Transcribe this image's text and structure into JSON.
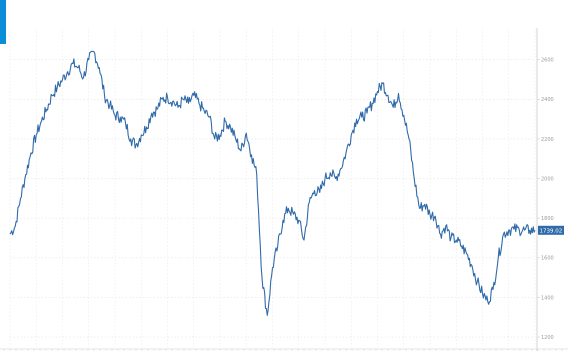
{
  "colors": {
    "accent": "#0b8ed8",
    "line": "#2f6aa9",
    "grid": "#e4e4e4",
    "axis": "#cccccc",
    "background": "#ffffff"
  },
  "chart_data": {
    "type": "line",
    "title": "",
    "xlabel": "",
    "ylabel": "",
    "ylim": [
      1150,
      2760
    ],
    "y_ticks": [
      1200,
      1400,
      1600,
      1800,
      2000,
      2200,
      2400,
      2600
    ],
    "y_tick_labels": [
      "1200",
      "1400",
      "1600",
      "1800",
      "2000",
      "2200",
      "2400",
      "2600"
    ],
    "grid": true,
    "y_axis_position": "right",
    "x_index_range": [
      0,
      100
    ],
    "last_value": 1739,
    "last_value_label": "1739.02",
    "series": [
      {
        "x": [
          0,
          1,
          2,
          3,
          4,
          5,
          6,
          7,
          8,
          9,
          10,
          11,
          12,
          13,
          14,
          15,
          16,
          17,
          18,
          19,
          20,
          21,
          22,
          23,
          24,
          25,
          26,
          27,
          28,
          29,
          30,
          31,
          32,
          33,
          34,
          35,
          36,
          37,
          38,
          39,
          40,
          41,
          42,
          43,
          44,
          45,
          46,
          47,
          48,
          49,
          50,
          51,
          52,
          53,
          54,
          55,
          56,
          57,
          58,
          59,
          60,
          61,
          62,
          63,
          64,
          65,
          66,
          67,
          68,
          69,
          70,
          71,
          72,
          73,
          74,
          75,
          76,
          77,
          78,
          79,
          80,
          81,
          82,
          83,
          84,
          85,
          86,
          87,
          88,
          89,
          90,
          91,
          92,
          93,
          94,
          95,
          96,
          97,
          98,
          99,
          100
        ],
        "values": [
          1720,
          1760,
          1900,
          2020,
          2130,
          2220,
          2290,
          2350,
          2420,
          2460,
          2500,
          2540,
          2580,
          2560,
          2510,
          2600,
          2640,
          2560,
          2420,
          2370,
          2320,
          2310,
          2280,
          2200,
          2170,
          2220,
          2260,
          2330,
          2350,
          2400,
          2410,
          2390,
          2360,
          2400,
          2380,
          2420,
          2380,
          2340,
          2310,
          2200,
          2220,
          2290,
          2260,
          2200,
          2140,
          2230,
          2120,
          2020,
          1500,
          1310,
          1550,
          1660,
          1790,
          1850,
          1820,
          1790,
          1690,
          1880,
          1940,
          1930,
          2000,
          2030,
          2000,
          2050,
          2130,
          2220,
          2300,
          2310,
          2330,
          2380,
          2440,
          2480,
          2420,
          2360,
          2430,
          2320,
          2200,
          2000,
          1850,
          1870,
          1820,
          1810,
          1720,
          1760,
          1700,
          1690,
          1660,
          1620,
          1560,
          1480,
          1420,
          1380,
          1440,
          1600,
          1720,
          1740,
          1745,
          1742,
          1740,
          1739,
          1739
        ]
      }
    ]
  }
}
